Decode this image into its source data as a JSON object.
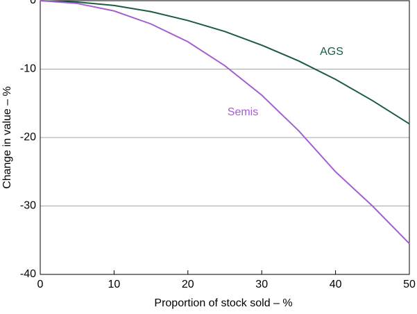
{
  "chart_data": {
    "type": "line",
    "x": [
      0,
      5,
      10,
      15,
      20,
      25,
      30,
      35,
      40,
      45,
      50
    ],
    "series": [
      {
        "name": "AGS",
        "color": "#1b5b40",
        "values": [
          0,
          -0.2,
          -0.7,
          -1.6,
          -2.9,
          -4.5,
          -6.5,
          -8.8,
          -11.5,
          -14.6,
          -18
        ]
      },
      {
        "name": "Semis",
        "color": "#a45fd0",
        "values": [
          0,
          -0.4,
          -1.5,
          -3.4,
          -6,
          -9.5,
          -13.8,
          -19,
          -25,
          -30,
          -35.5
        ]
      }
    ],
    "xlabel": "Proportion of stock sold – %",
    "ylabel": "Change in value – %",
    "xlim": [
      0,
      50
    ],
    "xticks": [
      0,
      10,
      20,
      30,
      40,
      50
    ],
    "ylim": [
      -40,
      0
    ],
    "yticks": [
      0,
      -10,
      -20,
      -30,
      -40
    ],
    "grid": true
  }
}
